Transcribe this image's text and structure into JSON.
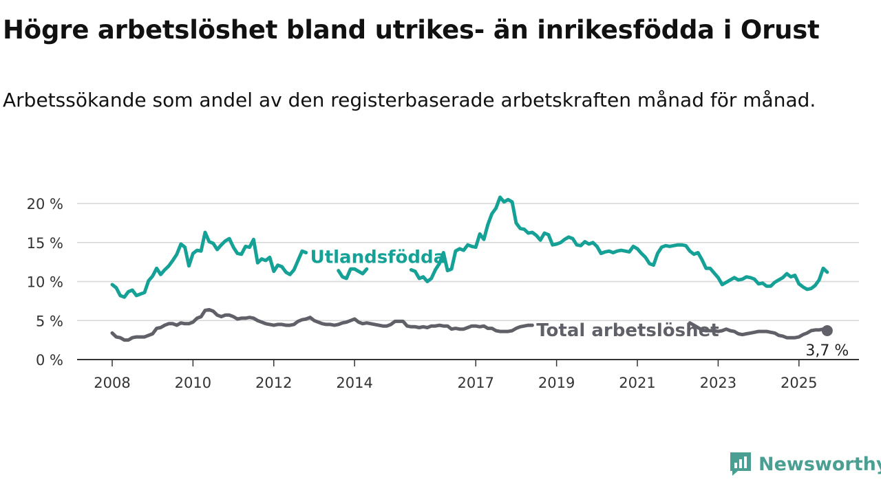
{
  "title": "Högre arbetslöshet bland utrikes- än inrikesfödda i Orust",
  "subtitle": "Arbetssökande som andel av den registerbaserade arbetskraften månad för månad.",
  "brand": {
    "name": "Newsworthy",
    "icon": "newsworthy-chart-bubble-icon",
    "color": "#4a9e92"
  },
  "chart_data": {
    "type": "line",
    "xlim": [
      2008.0,
      2025.6
    ],
    "ylim": [
      0,
      22
    ],
    "yticks": [
      0,
      5,
      10,
      15,
      20
    ],
    "ytick_labels": [
      "0 %",
      "5 %",
      "10 %",
      "15 %",
      "20 %"
    ],
    "xticks": [
      2008,
      2010,
      2012,
      2014,
      2017,
      2019,
      2021,
      2023,
      2025
    ],
    "xtick_labels": [
      "2008",
      "2010",
      "2012",
      "2014",
      "2017",
      "2019",
      "2021",
      "2023",
      "2025"
    ],
    "grid": true,
    "legend": "inline",
    "series": [
      {
        "name": "Utlandsfödda",
        "color": "#16a197",
        "points": [
          [
            2008.0,
            9.6
          ],
          [
            2008.1,
            9.2
          ],
          [
            2008.2,
            8.2
          ],
          [
            2008.3,
            8.0
          ],
          [
            2008.4,
            8.7
          ],
          [
            2008.5,
            8.9
          ],
          [
            2008.6,
            8.2
          ],
          [
            2008.7,
            8.4
          ],
          [
            2008.8,
            8.6
          ],
          [
            2008.9,
            10.1
          ],
          [
            2009.0,
            10.7
          ],
          [
            2009.1,
            11.7
          ],
          [
            2009.2,
            10.9
          ],
          [
            2009.3,
            11.5
          ],
          [
            2009.4,
            12.0
          ],
          [
            2009.5,
            12.7
          ],
          [
            2009.6,
            13.5
          ],
          [
            2009.7,
            14.8
          ],
          [
            2009.8,
            14.4
          ],
          [
            2009.9,
            12.0
          ],
          [
            2010.0,
            13.6
          ],
          [
            2010.1,
            14.0
          ],
          [
            2010.2,
            13.9
          ],
          [
            2010.3,
            16.3
          ],
          [
            2010.4,
            15.1
          ],
          [
            2010.5,
            14.9
          ],
          [
            2010.6,
            14.1
          ],
          [
            2010.7,
            14.7
          ],
          [
            2010.8,
            15.2
          ],
          [
            2010.9,
            15.5
          ],
          [
            2011.0,
            14.4
          ],
          [
            2011.1,
            13.6
          ],
          [
            2011.2,
            13.5
          ],
          [
            2011.3,
            14.5
          ],
          [
            2011.4,
            14.4
          ],
          [
            2011.5,
            15.4
          ],
          [
            2011.6,
            12.4
          ],
          [
            2011.7,
            12.9
          ],
          [
            2011.8,
            12.7
          ],
          [
            2011.9,
            13.1
          ],
          [
            2012.0,
            11.3
          ],
          [
            2012.1,
            12.1
          ],
          [
            2012.2,
            11.9
          ],
          [
            2012.3,
            11.2
          ],
          [
            2012.4,
            10.9
          ],
          [
            2012.5,
            11.5
          ],
          [
            2012.6,
            12.7
          ],
          [
            2012.7,
            13.9
          ],
          [
            2012.8,
            13.7
          ],
          [
            2013.0,
            null
          ],
          [
            2013.6,
            11.4
          ],
          [
            2013.7,
            10.6
          ],
          [
            2013.8,
            10.4
          ],
          [
            2013.9,
            11.6
          ],
          [
            2014.0,
            11.6
          ],
          [
            2014.1,
            11.3
          ],
          [
            2014.2,
            11.0
          ],
          [
            2014.3,
            11.6
          ],
          [
            2014.4,
            null
          ],
          [
            2015.4,
            11.5
          ],
          [
            2015.5,
            11.3
          ],
          [
            2015.6,
            10.4
          ],
          [
            2015.7,
            10.6
          ],
          [
            2015.8,
            10.0
          ],
          [
            2015.9,
            10.4
          ],
          [
            2016.0,
            11.5
          ],
          [
            2016.1,
            12.3
          ],
          [
            2016.2,
            13.7
          ],
          [
            2016.3,
            11.4
          ],
          [
            2016.4,
            11.6
          ],
          [
            2016.5,
            13.9
          ],
          [
            2016.6,
            14.2
          ],
          [
            2016.7,
            14.0
          ],
          [
            2016.8,
            14.7
          ],
          [
            2016.9,
            14.5
          ],
          [
            2017.0,
            14.4
          ],
          [
            2017.1,
            16.1
          ],
          [
            2017.2,
            15.4
          ],
          [
            2017.3,
            17.3
          ],
          [
            2017.4,
            18.7
          ],
          [
            2017.5,
            19.4
          ],
          [
            2017.6,
            20.8
          ],
          [
            2017.7,
            20.2
          ],
          [
            2017.8,
            20.5
          ],
          [
            2017.9,
            20.2
          ],
          [
            2018.0,
            17.5
          ],
          [
            2018.1,
            16.8
          ],
          [
            2018.2,
            16.7
          ],
          [
            2018.3,
            16.2
          ],
          [
            2018.4,
            16.3
          ],
          [
            2018.5,
            15.9
          ],
          [
            2018.6,
            15.3
          ],
          [
            2018.7,
            16.2
          ],
          [
            2018.8,
            16.0
          ],
          [
            2018.9,
            14.7
          ],
          [
            2019.0,
            14.8
          ],
          [
            2019.1,
            15.0
          ],
          [
            2019.2,
            15.4
          ],
          [
            2019.3,
            15.7
          ],
          [
            2019.4,
            15.5
          ],
          [
            2019.5,
            14.7
          ],
          [
            2019.6,
            14.6
          ],
          [
            2019.7,
            15.1
          ],
          [
            2019.8,
            14.8
          ],
          [
            2019.9,
            15.0
          ],
          [
            2020.0,
            14.5
          ],
          [
            2020.1,
            13.6
          ],
          [
            2020.2,
            13.8
          ],
          [
            2020.3,
            13.9
          ],
          [
            2020.4,
            13.7
          ],
          [
            2020.5,
            13.9
          ],
          [
            2020.6,
            14.0
          ],
          [
            2020.7,
            13.9
          ],
          [
            2020.8,
            13.8
          ],
          [
            2020.9,
            14.5
          ],
          [
            2021.0,
            14.2
          ],
          [
            2021.1,
            13.6
          ],
          [
            2021.2,
            13.1
          ],
          [
            2021.3,
            12.3
          ],
          [
            2021.4,
            12.1
          ],
          [
            2021.5,
            13.6
          ],
          [
            2021.6,
            14.4
          ],
          [
            2021.7,
            14.6
          ],
          [
            2021.8,
            14.5
          ],
          [
            2021.9,
            14.6
          ],
          [
            2022.0,
            14.7
          ],
          [
            2022.1,
            14.7
          ],
          [
            2022.2,
            14.6
          ],
          [
            2022.3,
            13.9
          ],
          [
            2022.4,
            13.5
          ],
          [
            2022.5,
            13.7
          ],
          [
            2022.6,
            12.8
          ],
          [
            2022.7,
            11.7
          ],
          [
            2022.8,
            11.7
          ],
          [
            2022.9,
            11.1
          ],
          [
            2023.0,
            10.5
          ],
          [
            2023.1,
            9.6
          ],
          [
            2023.2,
            9.9
          ],
          [
            2023.3,
            10.2
          ],
          [
            2023.4,
            10.5
          ],
          [
            2023.5,
            10.2
          ],
          [
            2023.6,
            10.3
          ],
          [
            2023.7,
            10.6
          ],
          [
            2023.8,
            10.5
          ],
          [
            2023.9,
            10.3
          ],
          [
            2024.0,
            9.7
          ],
          [
            2024.1,
            9.8
          ],
          [
            2024.2,
            9.4
          ],
          [
            2024.3,
            9.4
          ],
          [
            2024.4,
            9.9
          ],
          [
            2024.5,
            10.2
          ],
          [
            2024.6,
            10.5
          ],
          [
            2024.7,
            11.0
          ],
          [
            2024.8,
            10.6
          ],
          [
            2024.9,
            10.8
          ],
          [
            2025.0,
            9.7
          ],
          [
            2025.1,
            9.3
          ],
          [
            2025.2,
            9.0
          ],
          [
            2025.3,
            9.1
          ],
          [
            2025.4,
            9.5
          ],
          [
            2025.5,
            10.2
          ],
          [
            2025.6,
            11.7
          ],
          [
            2025.7,
            11.2
          ]
        ]
      },
      {
        "name": "Total arbetslöshet",
        "color": "#606068",
        "points": [
          [
            2008.0,
            3.4
          ],
          [
            2008.1,
            2.9
          ],
          [
            2008.2,
            2.8
          ],
          [
            2008.3,
            2.5
          ],
          [
            2008.4,
            2.5
          ],
          [
            2008.5,
            2.8
          ],
          [
            2008.6,
            2.9
          ],
          [
            2008.7,
            2.9
          ],
          [
            2008.8,
            2.9
          ],
          [
            2008.9,
            3.1
          ],
          [
            2009.0,
            3.3
          ],
          [
            2009.1,
            4.0
          ],
          [
            2009.2,
            4.1
          ],
          [
            2009.3,
            4.4
          ],
          [
            2009.4,
            4.6
          ],
          [
            2009.5,
            4.6
          ],
          [
            2009.6,
            4.4
          ],
          [
            2009.7,
            4.7
          ],
          [
            2009.8,
            4.6
          ],
          [
            2009.9,
            4.6
          ],
          [
            2010.0,
            4.8
          ],
          [
            2010.1,
            5.3
          ],
          [
            2010.2,
            5.5
          ],
          [
            2010.3,
            6.3
          ],
          [
            2010.4,
            6.4
          ],
          [
            2010.5,
            6.2
          ],
          [
            2010.6,
            5.7
          ],
          [
            2010.7,
            5.5
          ],
          [
            2010.8,
            5.7
          ],
          [
            2010.9,
            5.7
          ],
          [
            2011.0,
            5.5
          ],
          [
            2011.1,
            5.2
          ],
          [
            2011.2,
            5.3
          ],
          [
            2011.3,
            5.3
          ],
          [
            2011.4,
            5.4
          ],
          [
            2011.5,
            5.3
          ],
          [
            2011.6,
            5.0
          ],
          [
            2011.7,
            4.8
          ],
          [
            2011.8,
            4.6
          ],
          [
            2011.9,
            4.5
          ],
          [
            2012.0,
            4.4
          ],
          [
            2012.1,
            4.5
          ],
          [
            2012.2,
            4.5
          ],
          [
            2012.3,
            4.4
          ],
          [
            2012.4,
            4.4
          ],
          [
            2012.5,
            4.5
          ],
          [
            2012.6,
            4.9
          ],
          [
            2012.7,
            5.1
          ],
          [
            2012.8,
            5.2
          ],
          [
            2012.9,
            5.4
          ],
          [
            2013.0,
            5.0
          ],
          [
            2013.1,
            4.8
          ],
          [
            2013.2,
            4.6
          ],
          [
            2013.3,
            4.5
          ],
          [
            2013.4,
            4.5
          ],
          [
            2013.5,
            4.4
          ],
          [
            2013.6,
            4.5
          ],
          [
            2013.7,
            4.7
          ],
          [
            2013.8,
            4.8
          ],
          [
            2013.9,
            5.0
          ],
          [
            2014.0,
            5.2
          ],
          [
            2014.1,
            4.8
          ],
          [
            2014.2,
            4.6
          ],
          [
            2014.3,
            4.7
          ],
          [
            2014.4,
            4.6
          ],
          [
            2014.5,
            4.5
          ],
          [
            2014.6,
            4.4
          ],
          [
            2014.7,
            4.3
          ],
          [
            2014.8,
            4.3
          ],
          [
            2014.9,
            4.5
          ],
          [
            2015.0,
            4.9
          ],
          [
            2015.1,
            4.9
          ],
          [
            2015.2,
            4.9
          ],
          [
            2015.3,
            4.3
          ],
          [
            2015.4,
            4.2
          ],
          [
            2015.5,
            4.2
          ],
          [
            2015.6,
            4.1
          ],
          [
            2015.7,
            4.2
          ],
          [
            2015.8,
            4.1
          ],
          [
            2015.9,
            4.3
          ],
          [
            2016.0,
            4.3
          ],
          [
            2016.1,
            4.4
          ],
          [
            2016.2,
            4.3
          ],
          [
            2016.3,
            4.3
          ],
          [
            2016.4,
            3.9
          ],
          [
            2016.5,
            4.0
          ],
          [
            2016.6,
            3.9
          ],
          [
            2016.7,
            3.9
          ],
          [
            2016.8,
            4.1
          ],
          [
            2016.9,
            4.3
          ],
          [
            2017.0,
            4.3
          ],
          [
            2017.1,
            4.2
          ],
          [
            2017.2,
            4.3
          ],
          [
            2017.3,
            4.0
          ],
          [
            2017.4,
            4.0
          ],
          [
            2017.5,
            3.7
          ],
          [
            2017.6,
            3.6
          ],
          [
            2017.7,
            3.6
          ],
          [
            2017.8,
            3.6
          ],
          [
            2017.9,
            3.7
          ],
          [
            2018.0,
            4.0
          ],
          [
            2018.1,
            4.2
          ],
          [
            2018.2,
            4.3
          ],
          [
            2018.3,
            4.4
          ],
          [
            2018.4,
            4.4
          ],
          [
            2018.5,
            null
          ],
          [
            2022.3,
            4.7
          ],
          [
            2022.4,
            4.4
          ],
          [
            2022.5,
            4.1
          ],
          [
            2022.6,
            3.8
          ],
          [
            2022.7,
            3.7
          ],
          [
            2022.8,
            3.7
          ],
          [
            2022.9,
            3.7
          ],
          [
            2023.0,
            3.6
          ],
          [
            2023.1,
            3.7
          ],
          [
            2023.2,
            3.9
          ],
          [
            2023.3,
            3.7
          ],
          [
            2023.4,
            3.6
          ],
          [
            2023.5,
            3.3
          ],
          [
            2023.6,
            3.2
          ],
          [
            2023.7,
            3.3
          ],
          [
            2023.8,
            3.4
          ],
          [
            2023.9,
            3.5
          ],
          [
            2024.0,
            3.6
          ],
          [
            2024.1,
            3.6
          ],
          [
            2024.2,
            3.6
          ],
          [
            2024.3,
            3.5
          ],
          [
            2024.4,
            3.4
          ],
          [
            2024.5,
            3.1
          ],
          [
            2024.6,
            3.0
          ],
          [
            2024.7,
            2.8
          ],
          [
            2024.8,
            2.8
          ],
          [
            2024.9,
            2.8
          ],
          [
            2025.0,
            2.9
          ],
          [
            2025.1,
            3.2
          ],
          [
            2025.2,
            3.4
          ],
          [
            2025.3,
            3.7
          ],
          [
            2025.4,
            3.8
          ],
          [
            2025.5,
            3.8
          ],
          [
            2025.6,
            3.9
          ],
          [
            2025.7,
            3.7
          ]
        ]
      }
    ],
    "series_labels": [
      "Utlandsfödda",
      "Total arbetslöshet"
    ],
    "end_value_label": "3,7 %"
  }
}
